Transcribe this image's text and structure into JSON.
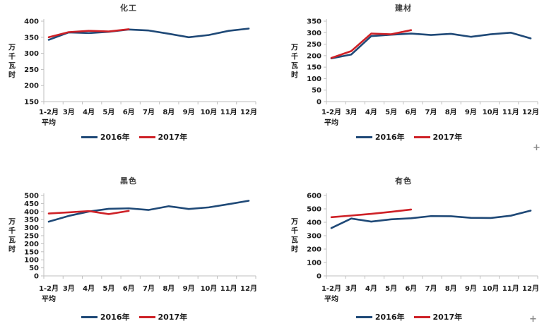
{
  "page": {
    "background": "#ffffff",
    "plus_cursor": "+"
  },
  "chart_data": [
    {
      "type": "line",
      "title": "化工",
      "ylabel": "万千瓦时",
      "xlabel": "",
      "grid": false,
      "legend_position": "bottom",
      "categories": [
        [
          "1-2月",
          "平均"
        ],
        [
          "3月"
        ],
        [
          "4月"
        ],
        [
          "5月"
        ],
        [
          "6月"
        ],
        [
          "7月"
        ],
        [
          "8月"
        ],
        [
          "9月"
        ],
        [
          "10月"
        ],
        [
          "11月"
        ],
        [
          "12月"
        ]
      ],
      "ylim": [
        150,
        400
      ],
      "yticks": [
        150,
        200,
        250,
        300,
        350,
        400
      ],
      "series": [
        {
          "name": "2016年",
          "color": "#1F4977",
          "values": [
            342,
            365,
            363,
            367,
            374,
            371,
            361,
            350,
            357,
            370,
            377
          ]
        },
        {
          "name": "2017年",
          "color": "#CE2127",
          "values": [
            350,
            366,
            370,
            368,
            375
          ]
        }
      ]
    },
    {
      "type": "line",
      "title": "建材",
      "ylabel": "万千瓦时",
      "xlabel": "",
      "grid": false,
      "legend_position": "bottom",
      "categories": [
        [
          "1-2月",
          "平均"
        ],
        [
          "3月"
        ],
        [
          "4月"
        ],
        [
          "5月"
        ],
        [
          "6月"
        ],
        [
          "7月"
        ],
        [
          "8月"
        ],
        [
          "9月"
        ],
        [
          "10月"
        ],
        [
          "11月"
        ],
        [
          "12月"
        ]
      ],
      "ylim": [
        0,
        350
      ],
      "yticks": [
        0,
        50,
        100,
        150,
        200,
        250,
        300,
        350
      ],
      "series": [
        {
          "name": "2016年",
          "color": "#1F4977",
          "values": [
            188,
            205,
            285,
            291,
            296,
            290,
            295,
            282,
            293,
            300,
            275
          ]
        },
        {
          "name": "2017年",
          "color": "#CE2127",
          "values": [
            190,
            220,
            296,
            293,
            311
          ]
        }
      ]
    },
    {
      "type": "line",
      "title": "黑色",
      "ylabel": "万千瓦时",
      "xlabel": "",
      "grid": false,
      "legend_position": "bottom",
      "categories": [
        [
          "1-2月",
          "平均"
        ],
        [
          "3月"
        ],
        [
          "4月"
        ],
        [
          "5月"
        ],
        [
          "6月"
        ],
        [
          "7月"
        ],
        [
          "8月"
        ],
        [
          "9月"
        ],
        [
          "10月"
        ],
        [
          "11月"
        ],
        [
          "12月"
        ]
      ],
      "ylim": [
        0,
        500
      ],
      "yticks": [
        0,
        50,
        100,
        150,
        200,
        250,
        300,
        350,
        400,
        450,
        500
      ],
      "series": [
        {
          "name": "2016年",
          "color": "#1F4977",
          "values": [
            337,
            373,
            400,
            417,
            420,
            410,
            433,
            416,
            426,
            446,
            467
          ]
        },
        {
          "name": "2017年",
          "color": "#CE2127",
          "values": [
            388,
            395,
            403,
            384,
            404
          ]
        }
      ]
    },
    {
      "type": "line",
      "title": "有色",
      "ylabel": "万千瓦时",
      "xlabel": "",
      "grid": false,
      "legend_position": "bottom",
      "categories": [
        [
          "1-2月",
          "平均"
        ],
        [
          "3月"
        ],
        [
          "4月"
        ],
        [
          "5月"
        ],
        [
          "6月"
        ],
        [
          "7月"
        ],
        [
          "8月"
        ],
        [
          "9月"
        ],
        [
          "10月"
        ],
        [
          "11月"
        ],
        [
          "12月"
        ]
      ],
      "ylim": [
        0,
        600
      ],
      "yticks": [
        0,
        100,
        200,
        300,
        400,
        500,
        600
      ],
      "series": [
        {
          "name": "2016年",
          "color": "#1F4977",
          "values": [
            357,
            428,
            405,
            422,
            430,
            446,
            445,
            433,
            432,
            449,
            487
          ]
        },
        {
          "name": "2017年",
          "color": "#CE2127",
          "values": [
            438,
            450,
            463,
            478,
            495
          ]
        }
      ]
    }
  ]
}
